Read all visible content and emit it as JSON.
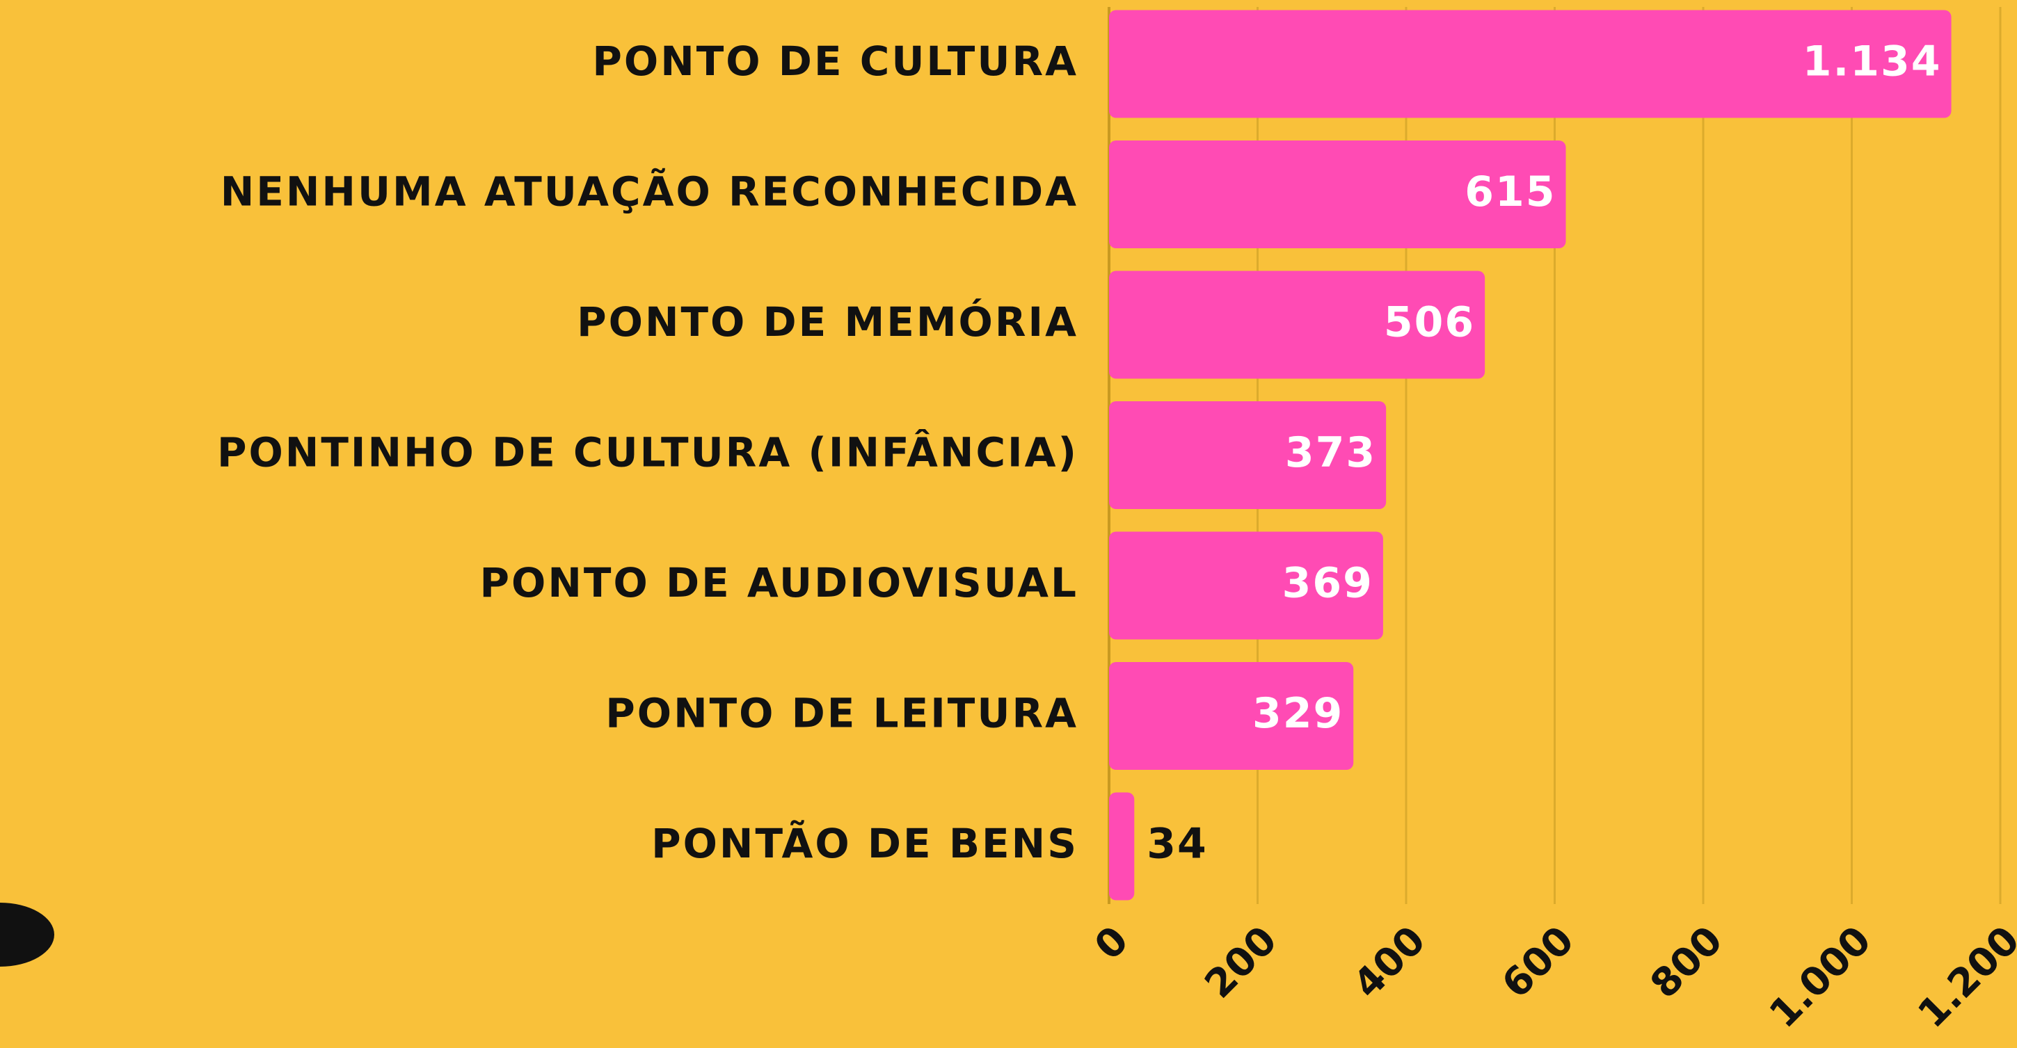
{
  "chart_data": {
    "type": "bar",
    "orientation": "horizontal",
    "categories": [
      "PONTO DE CULTURA",
      "NENHUMA ATUAÇÃO RECONHECIDA",
      "PONTO DE MEMÓRIA",
      "PONTINHO DE CULTURA (INFÂNCIA)",
      "PONTO DE AUDIOVISUAL",
      "PONTO DE LEITURA",
      "PONTÃO DE BENS"
    ],
    "values": [
      1134,
      615,
      506,
      373,
      369,
      329,
      34
    ],
    "value_labels": [
      "1.134",
      "615",
      "506",
      "373",
      "369",
      "329",
      "34"
    ],
    "color": "#ff4bb4",
    "xlim": [
      0,
      1200
    ],
    "xticks": [
      0,
      200,
      400,
      600,
      800,
      {
        "value": 1000,
        "label": "1.000"
      },
      {
        "value": 1200,
        "label": "1.200"
      }
    ],
    "grid": true
  }
}
